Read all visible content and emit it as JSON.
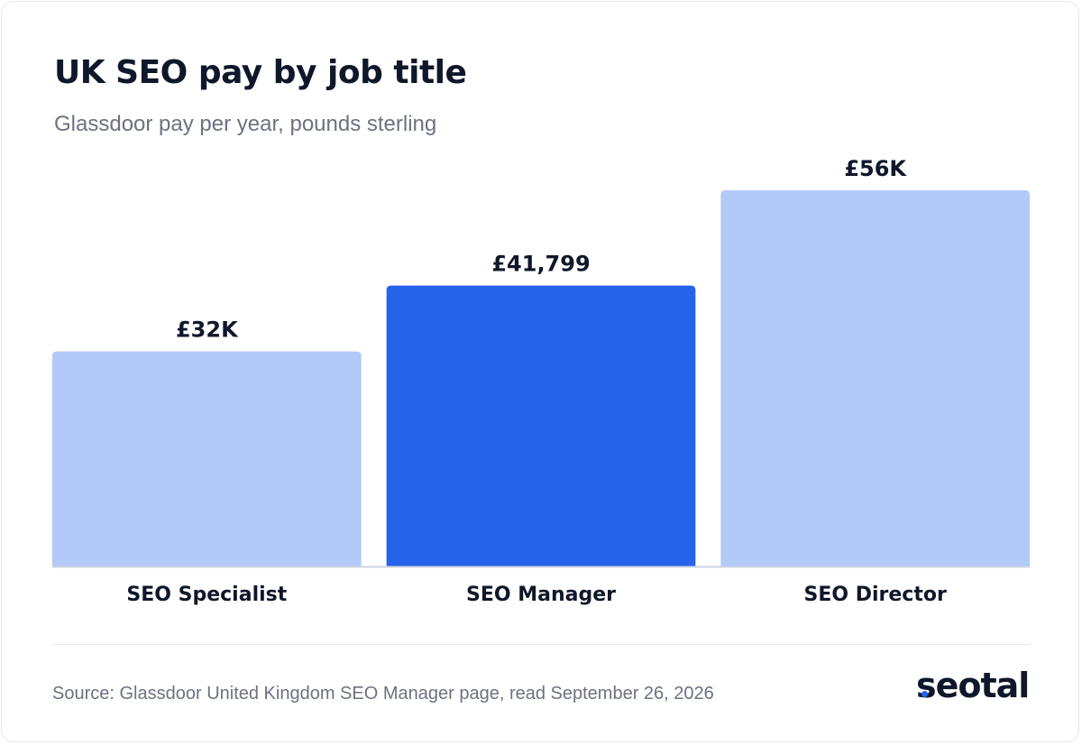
{
  "title": "UK SEO pay by job title",
  "subtitle": "Glassdoor pay per year, pounds sterling",
  "source": "Source: Glassdoor United Kingdom SEO Manager page, read September 26, 2026",
  "logo": {
    "text": "seotal",
    "dot_color": "#2563eb"
  },
  "colors": {
    "highlight": "#2563eb",
    "muted": "#b3c9f7",
    "text": "#0f172a",
    "axis": "#cbd5e1"
  },
  "chart_data": {
    "type": "bar",
    "categories": [
      "SEO Specialist",
      "SEO Manager",
      "SEO Director"
    ],
    "values": [
      32000,
      41799,
      56000
    ],
    "data_labels": [
      "£32K",
      "£41,799",
      "£56K"
    ],
    "highlighted": [
      "SEO Manager"
    ],
    "title": "UK SEO pay by job title",
    "subtitle": "Glassdoor pay per year, pounds sterling",
    "xlabel": "",
    "ylabel": "",
    "ylim": [
      0,
      58000
    ],
    "grid": false,
    "legend": "none"
  }
}
